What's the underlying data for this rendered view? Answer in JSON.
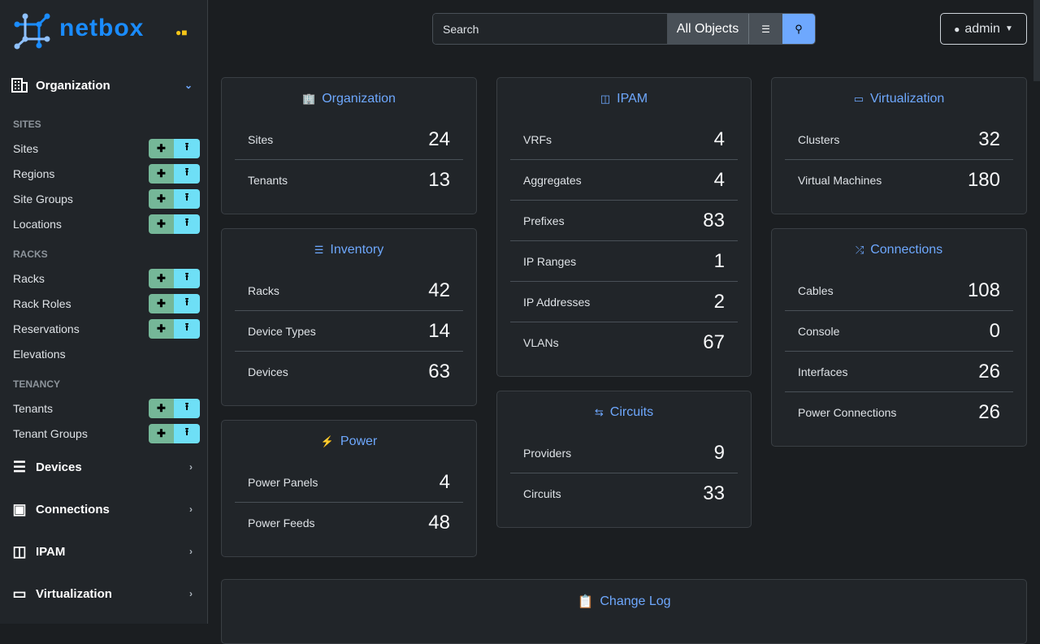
{
  "brand": {
    "name": "netbox",
    "accent": "#1a8cff"
  },
  "sidebar": {
    "organization": {
      "label": "Organization",
      "sections": [
        {
          "title": "SITES",
          "items": [
            {
              "label": "Sites",
              "buttons": true
            },
            {
              "label": "Regions",
              "buttons": true
            },
            {
              "label": "Site Groups",
              "buttons": true
            },
            {
              "label": "Locations",
              "buttons": true
            }
          ]
        },
        {
          "title": "RACKS",
          "items": [
            {
              "label": "Racks",
              "buttons": true
            },
            {
              "label": "Rack Roles",
              "buttons": true
            },
            {
              "label": "Reservations",
              "buttons": true
            },
            {
              "label": "Elevations",
              "buttons": false
            }
          ]
        },
        {
          "title": "TENANCY",
          "items": [
            {
              "label": "Tenants",
              "buttons": true
            },
            {
              "label": "Tenant Groups",
              "buttons": true
            }
          ]
        }
      ]
    },
    "menus": [
      {
        "label": "Devices",
        "icon": "server-icon"
      },
      {
        "label": "Connections",
        "icon": "ethernet-icon"
      },
      {
        "label": "IPAM",
        "icon": "counter-icon"
      },
      {
        "label": "Virtualization",
        "icon": "monitor-icon"
      }
    ]
  },
  "search": {
    "placeholder": "Search",
    "scope": "All Objects"
  },
  "user": {
    "name": "admin"
  },
  "columns": [
    [
      {
        "title": "Organization",
        "icon": "building-icon",
        "rows": [
          [
            "Sites",
            "24"
          ],
          [
            "Tenants",
            "13"
          ]
        ]
      },
      {
        "title": "Inventory",
        "icon": "server-icon",
        "rows": [
          [
            "Racks",
            "42"
          ],
          [
            "Device Types",
            "14"
          ],
          [
            "Devices",
            "63"
          ]
        ]
      },
      {
        "title": "Power",
        "icon": "flash-icon",
        "rows": [
          [
            "Power Panels",
            "4"
          ],
          [
            "Power Feeds",
            "48"
          ]
        ]
      }
    ],
    [
      {
        "title": "IPAM",
        "icon": "counter-icon",
        "rows": [
          [
            "VRFs",
            "4"
          ],
          [
            "Aggregates",
            "4"
          ],
          [
            "Prefixes",
            "83"
          ],
          [
            "IP Ranges",
            "1"
          ],
          [
            "IP Addresses",
            "2"
          ],
          [
            "VLANs",
            "67"
          ]
        ]
      },
      {
        "title": "Circuits",
        "icon": "transit-icon",
        "rows": [
          [
            "Providers",
            "9"
          ],
          [
            "Circuits",
            "33"
          ]
        ]
      }
    ],
    [
      {
        "title": "Virtualization",
        "icon": "monitor-icon",
        "rows": [
          [
            "Clusters",
            "32"
          ],
          [
            "Virtual Machines",
            "180"
          ]
        ]
      },
      {
        "title": "Connections",
        "icon": "cable-icon",
        "rows": [
          [
            "Cables",
            "108"
          ],
          [
            "Console",
            "0"
          ],
          [
            "Interfaces",
            "26"
          ],
          [
            "Power Connections",
            "26"
          ]
        ]
      }
    ]
  ],
  "changelog": {
    "title": "Change Log"
  }
}
